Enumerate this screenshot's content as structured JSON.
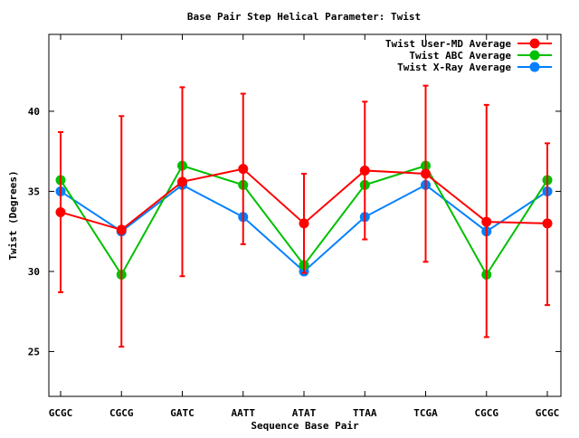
{
  "chart_data": {
    "type": "line",
    "title": "Base Pair Step Helical Parameter: Twist",
    "xlabel": "Sequence Base Pair",
    "ylabel": "Twist (Degrees)",
    "categories": [
      "GCGC",
      "CGCG",
      "GATC",
      "AATT",
      "ATAT",
      "TTAA",
      "TCGA",
      "CGCG",
      "GCGC"
    ],
    "ylim": [
      22.2,
      44.8
    ],
    "yticks": [
      25,
      30,
      35,
      40
    ],
    "grid": false,
    "legend_position": "top-right",
    "series": [
      {
        "name": "Twist User-MD Average",
        "color": "#ff0000",
        "values": [
          33.7,
          32.6,
          35.6,
          36.4,
          33.0,
          36.3,
          36.1,
          33.1,
          33.0
        ],
        "err_low": [
          28.7,
          25.3,
          29.7,
          31.7,
          29.9,
          32.0,
          30.6,
          25.9,
          27.9
        ],
        "err_high": [
          38.7,
          39.7,
          41.5,
          41.1,
          36.1,
          40.6,
          41.6,
          40.4,
          38.0
        ]
      },
      {
        "name": "Twist ABC Average",
        "color": "#00c000",
        "values": [
          35.7,
          29.8,
          36.6,
          35.4,
          30.4,
          35.4,
          36.6,
          29.8,
          35.7
        ]
      },
      {
        "name": "Twist X-Ray Average",
        "color": "#0080ff",
        "values": [
          35.0,
          32.5,
          35.4,
          33.4,
          30.0,
          33.4,
          35.4,
          32.5,
          35.0
        ]
      }
    ]
  }
}
